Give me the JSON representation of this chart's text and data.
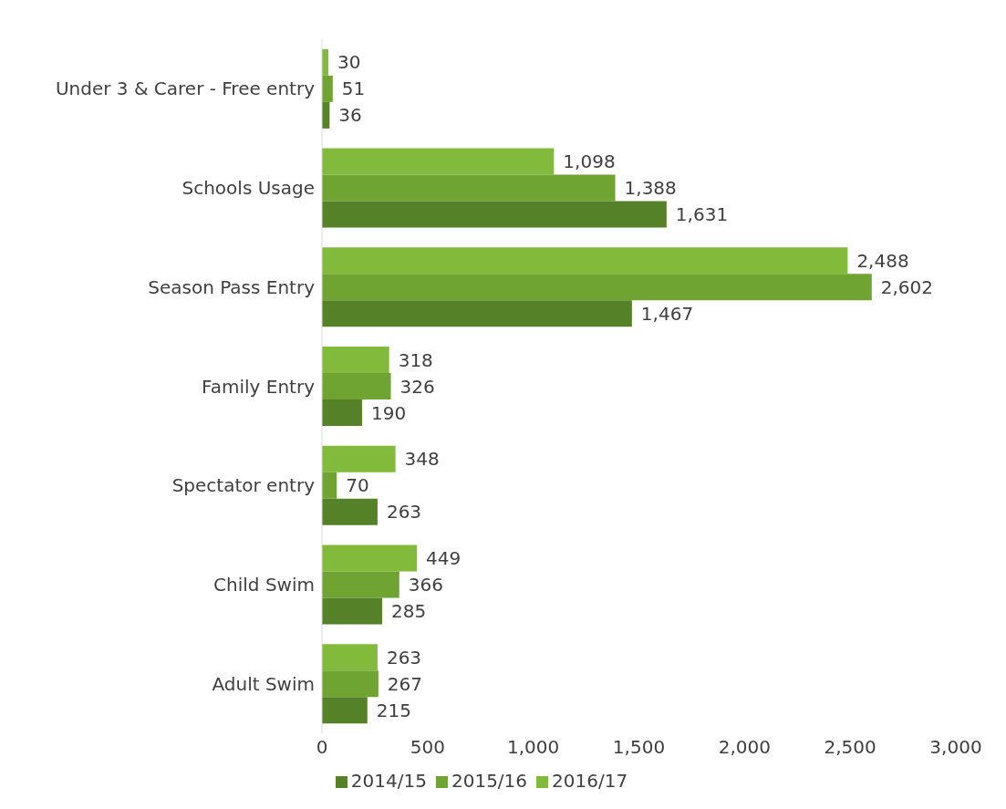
{
  "chart_data": {
    "type": "bar",
    "orientation": "horizontal",
    "categories": [
      "Under 3 & Carer - Free entry",
      "Schools Usage",
      "Season Pass Entry",
      "Family Entry",
      "Spectator entry",
      "Child Swim",
      "Adult Swim"
    ],
    "series": [
      {
        "name": "2016/17",
        "color": "#82ba3c",
        "values": [
          30,
          1098,
          2488,
          318,
          348,
          449,
          263
        ],
        "value_labels": [
          "30",
          "1,098",
          "2,488",
          "318",
          "348",
          "449",
          "263"
        ]
      },
      {
        "name": "2015/16",
        "color": "#6fa332",
        "values": [
          51,
          1388,
          2602,
          326,
          70,
          366,
          267
        ],
        "value_labels": [
          "51",
          "1,388",
          "2,602",
          "326",
          "70",
          "366",
          "267"
        ]
      },
      {
        "name": "2014/15",
        "color": "#558229",
        "values": [
          36,
          1631,
          1467,
          190,
          263,
          285,
          215
        ],
        "value_labels": [
          "36",
          "1,631",
          "1,467",
          "190",
          "263",
          "285",
          "215"
        ]
      }
    ],
    "xlim": [
      0,
      3000
    ],
    "xticks": [
      0,
      500,
      {
        "value": 1000,
        "label": "1,000"
      },
      {
        "value": 1500,
        "label": "1,500"
      },
      {
        "value": 2000,
        "label": "2,000"
      },
      {
        "value": 2500,
        "label": "2,500"
      },
      {
        "value": 3000,
        "label": "3,000"
      }
    ],
    "grid": false,
    "legend": "bottom"
  }
}
